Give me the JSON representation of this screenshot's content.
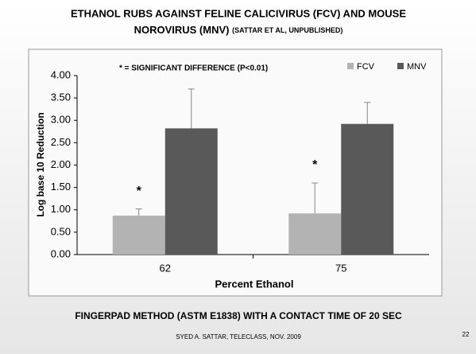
{
  "chart_data": {
    "type": "bar",
    "title": "ETHANOL RUBS AGAINST FELINE CALICIVIRUS (FCV) AND MOUSE",
    "title_line2": "NOROVIRUS (MNV)",
    "subtitle": "(SATTAR ET AL, UNPUBLISHED)",
    "annotation": "* = SIGNIFICANT DIFFERENCE (P<0.01)",
    "significance_markers": [
      "*",
      "*"
    ],
    "x_label": "Percent Ethanol",
    "y_label": "Log base 10 Reduction",
    "categories": [
      "62",
      "75"
    ],
    "series": [
      {
        "name": "FCV",
        "color": "#b3b3b3",
        "values": [
          0.87,
          0.92
        ],
        "errors": [
          0.15,
          0.68
        ]
      },
      {
        "name": "MNV",
        "color": "#595959",
        "values": [
          2.82,
          2.92
        ],
        "errors": [
          0.88,
          0.48
        ]
      }
    ],
    "ylim": [
      0,
      4
    ],
    "yticks": [
      {
        "value": 0,
        "label": "0.00"
      },
      {
        "value": 0.5,
        "label": "0.50"
      },
      {
        "value": 1,
        "label": "1.00"
      },
      {
        "value": 1.5,
        "label": "1.50"
      },
      {
        "value": 2,
        "label": "2.00"
      },
      {
        "value": 2.5,
        "label": "2.50"
      },
      {
        "value": 3,
        "label": "3.00"
      },
      {
        "value": 3.5,
        "label": "3.50"
      },
      {
        "value": 4,
        "label": "4.00"
      }
    ],
    "legend": "top-right",
    "footer": "FINGERPAD METHOD (ASTM E1838) WITH A CONTACT TIME OF 20 SEC",
    "credit": "SYED A. SATTAR, TELECLASS, NOV. 2009",
    "page_number": "22"
  }
}
